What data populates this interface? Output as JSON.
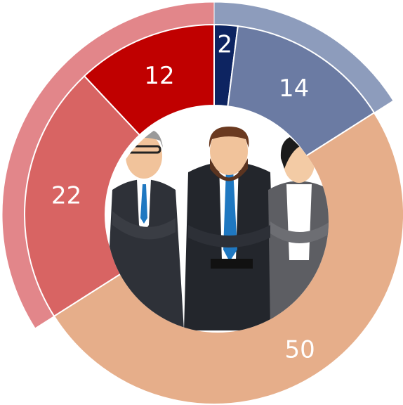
{
  "chart_data": {
    "type": "donut",
    "values": [
      2,
      14,
      50,
      22,
      12
    ],
    "colors": [
      "#0d2461",
      "#6b7ba3",
      "#e6ae8a",
      "#d86463",
      "#c00000"
    ]
  }
}
